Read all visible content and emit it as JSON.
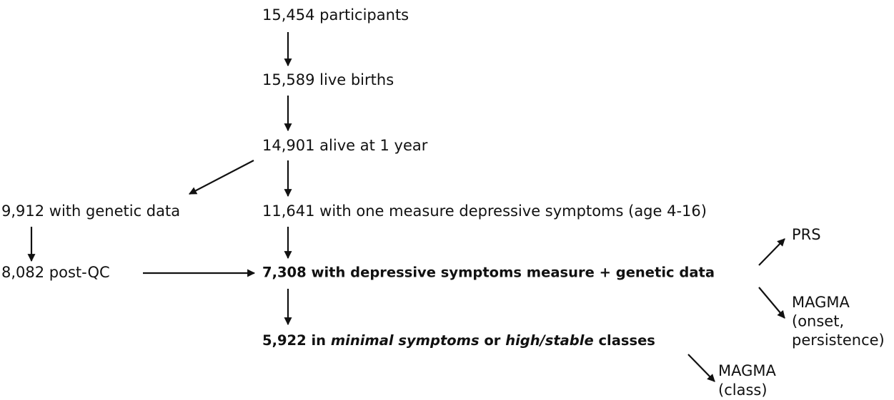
{
  "nodes": [
    {
      "label": "15,454 participants"
    },
    {
      "label": "15,589 live births"
    },
    {
      "label": "14,901 alive at 1 year"
    },
    {
      "label": "9,912 with genetic data"
    },
    {
      "label": "11,641 with one measure depressive symptoms (age 4-16)"
    },
    {
      "label": "8,082 post-QC"
    },
    {
      "label": "7,308 with depressive symptoms measure + genetic data",
      "bold": true
    },
    {
      "parts": [
        {
          "text": "5,922 in ",
          "italic": false
        },
        {
          "text": "minimal symptoms",
          "italic": true
        },
        {
          "text": " or ",
          "italic": false
        },
        {
          "text": "high/stable",
          "italic": true
        },
        {
          "text": " classes",
          "italic": false
        }
      ],
      "bold": true
    },
    {
      "label": "PRS"
    },
    {
      "lines": [
        "MAGMA",
        "(onset,",
        "persistence)"
      ]
    },
    {
      "lines": [
        "MAGMA",
        "(class)"
      ]
    }
  ]
}
